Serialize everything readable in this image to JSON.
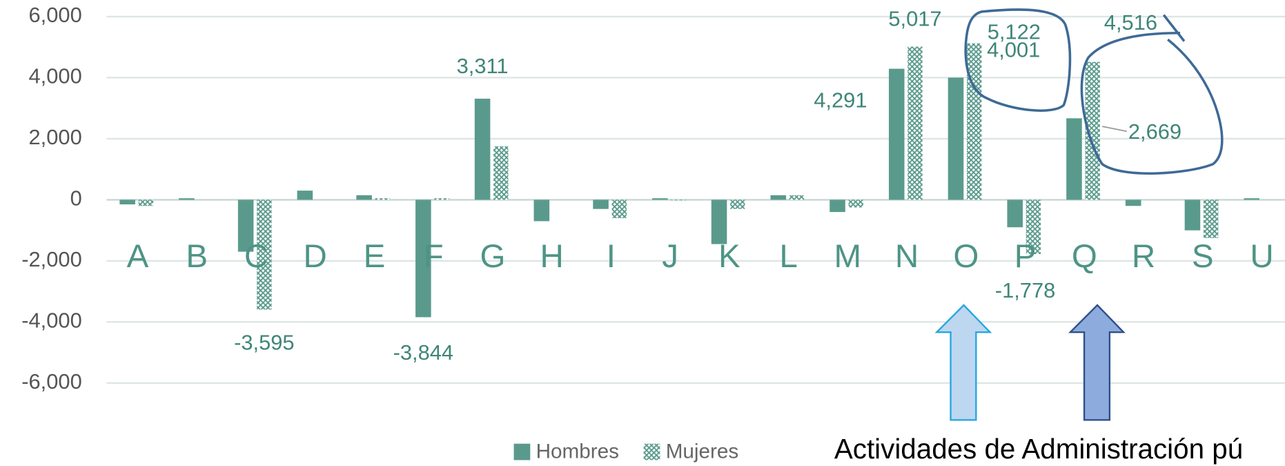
{
  "chart_data": {
    "type": "bar",
    "categories": [
      "A",
      "B",
      "C",
      "D",
      "E",
      "F",
      "G",
      "H",
      "I",
      "J",
      "K",
      "L",
      "M",
      "N",
      "O",
      "P",
      "Q",
      "R",
      "S",
      "U"
    ],
    "series": [
      {
        "name": "Hombres",
        "color": "#5a9a8c",
        "values": [
          -150,
          50,
          -1700,
          300,
          150,
          -3844,
          3311,
          -700,
          -300,
          50,
          -1450,
          150,
          -400,
          4291,
          4001,
          -900,
          2669,
          -200,
          -1000,
          50
        ],
        "value_labels": [
          null,
          null,
          null,
          null,
          null,
          "-3,844",
          "3,311",
          null,
          null,
          null,
          null,
          null,
          null,
          "4,291",
          "4,001",
          null,
          "2,669",
          null,
          null,
          null
        ]
      },
      {
        "name": "Mujeres",
        "color": "#5a9a8c",
        "values": [
          -200,
          0,
          -3595,
          0,
          50,
          50,
          1750,
          0,
          -600,
          -20,
          -300,
          150,
          -250,
          5017,
          5122,
          -1778,
          4516,
          0,
          -1250,
          0
        ],
        "value_labels": [
          null,
          null,
          "-3,595",
          null,
          null,
          null,
          null,
          null,
          null,
          null,
          null,
          null,
          null,
          "5,017",
          "5,122",
          "-1,778",
          "4,516",
          null,
          null,
          null
        ]
      }
    ],
    "ylim": [
      -6000,
      6000
    ],
    "yticks": [
      {
        "value": 6000,
        "label": "6,000"
      },
      {
        "value": 4000,
        "label": "4,000"
      },
      {
        "value": 2000,
        "label": "2,000"
      },
      0,
      {
        "value": -2000,
        "label": "-2,000"
      },
      {
        "value": -4000,
        "label": "-4,000"
      },
      {
        "value": -6000,
        "label": "-6,000"
      }
    ],
    "grid": true,
    "legend": "bottom",
    "annotation": "Actividades de Administración pú"
  }
}
